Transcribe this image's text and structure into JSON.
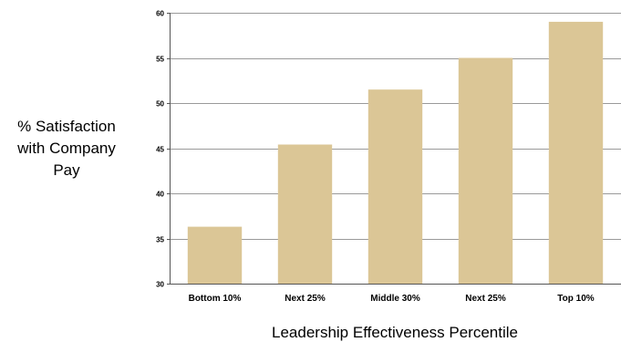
{
  "chart_data": {
    "type": "bar",
    "categories": [
      "Bottom 10%",
      "Next 25%",
      "Middle 30%",
      "Next 25%",
      "Top 10%"
    ],
    "values": [
      36.3,
      45.4,
      51.5,
      55.0,
      59.0
    ],
    "title": "",
    "xlabel": "Leadership Effectiveness Percentile",
    "ylabel_lines": [
      "% Satisfaction",
      "with Company",
      "Pay"
    ],
    "ylim": [
      30,
      60
    ],
    "yticks": [
      30,
      35,
      40,
      45,
      50,
      55,
      60
    ],
    "grid": true,
    "bar_color": "#dbc696",
    "grid_color": "#9a9a9a"
  }
}
